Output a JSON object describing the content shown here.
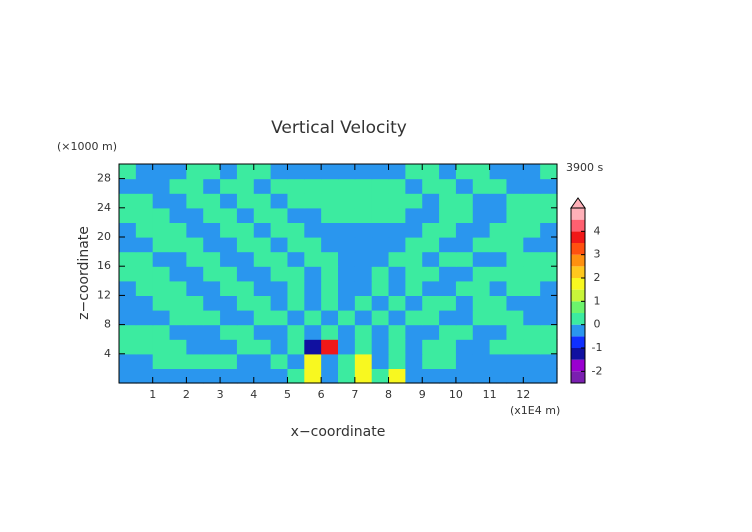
{
  "chart_data": {
    "type": "contour",
    "title": "Vertical Velocity",
    "xlabel": "x−coordinate",
    "ylabel": "z−coordinate",
    "x_unit": "(x1E4 m)",
    "y_unit": "(×1000 m)",
    "time_label": "3900 s",
    "xlim": [
      0,
      13
    ],
    "ylim": [
      0,
      30
    ],
    "xticks": [
      1,
      2,
      3,
      4,
      5,
      6,
      7,
      8,
      9,
      10,
      11,
      12
    ],
    "yticks": [
      4,
      8,
      12,
      16,
      20,
      24,
      28
    ],
    "levels": [
      -2.5,
      -2,
      -1.5,
      -1,
      -0.5,
      0,
      0.5,
      1,
      1.5,
      2,
      2.5,
      3,
      3.5,
      4,
      4.5,
      5
    ],
    "colors": [
      "#7a1fb0",
      "#9a00d0",
      "#1010a0",
      "#1030ff",
      "#2a96ee",
      "#3ceba0",
      "#6cf46c",
      "#c8f53a",
      "#f8f820",
      "#ffc81e",
      "#ff9010",
      "#ff5010",
      "#f01818",
      "#ff6070",
      "#ffb0b8"
    ],
    "colorbar_ticks": [
      -2,
      -1,
      0,
      1,
      2,
      3,
      4
    ],
    "z": [
      [
        -0.2,
        -0.2,
        -0.2,
        -0.2,
        -0.2,
        -0.2,
        -0.2,
        -0.2,
        -0.2,
        -0.2,
        0.2,
        1.6,
        -0.2,
        0.2,
        1.6,
        0.2,
        1.6,
        -0.2,
        -0.2,
        -0.2,
        -0.2,
        -0.2,
        -0.2,
        -0.2,
        -0.2,
        -0.2
      ],
      [
        -0.2,
        -0.2,
        0.2,
        0.2,
        0.2,
        0.2,
        0.2,
        -0.2,
        -0.2,
        0.2,
        -0.2,
        1.6,
        -0.2,
        0.2,
        1.6,
        -0.2,
        0.2,
        -0.2,
        0.2,
        0.2,
        -0.2,
        -0.2,
        -0.2,
        -0.2,
        -0.2,
        -0.2
      ],
      [
        0.2,
        0.2,
        0.2,
        0.2,
        -0.2,
        -0.2,
        -0.2,
        0.2,
        0.2,
        -0.2,
        0.2,
        -1.2,
        3.6,
        -0.2,
        0.2,
        -0.2,
        0.2,
        -0.2,
        0.2,
        0.2,
        -0.2,
        -0.2,
        0.2,
        0.2,
        0.2,
        0.2
      ],
      [
        0.2,
        0.2,
        0.2,
        -0.2,
        -0.2,
        -0.2,
        0.2,
        0.2,
        -0.2,
        -0.2,
        0.2,
        -0.2,
        0.2,
        -0.2,
        0.2,
        -0.2,
        0.2,
        -0.2,
        -0.2,
        0.2,
        0.2,
        -0.2,
        -0.2,
        0.2,
        0.2,
        0.2
      ],
      [
        -0.2,
        -0.2,
        -0.2,
        0.2,
        0.2,
        0.2,
        -0.2,
        -0.2,
        0.2,
        0.2,
        -0.2,
        0.2,
        -0.2,
        0.2,
        -0.2,
        0.2,
        -0.2,
        0.2,
        0.2,
        -0.2,
        -0.2,
        0.2,
        0.2,
        0.2,
        -0.2,
        -0.2
      ],
      [
        -0.2,
        -0.2,
        0.2,
        0.2,
        0.2,
        -0.2,
        -0.2,
        0.2,
        0.2,
        -0.2,
        0.2,
        -0.2,
        0.2,
        -0.2,
        0.2,
        -0.2,
        0.2,
        -0.2,
        0.2,
        0.2,
        -0.2,
        0.2,
        0.2,
        -0.2,
        -0.2,
        -0.2
      ],
      [
        -0.2,
        0.2,
        0.2,
        0.2,
        -0.2,
        -0.2,
        0.2,
        0.2,
        -0.2,
        -0.2,
        0.2,
        -0.2,
        0.2,
        -0.2,
        -0.2,
        0.2,
        -0.2,
        0.2,
        -0.2,
        -0.2,
        0.2,
        0.2,
        -0.2,
        0.2,
        0.2,
        -0.2
      ],
      [
        0.2,
        0.2,
        0.2,
        -0.2,
        -0.2,
        0.2,
        0.2,
        -0.2,
        -0.2,
        0.2,
        0.2,
        -0.2,
        0.2,
        -0.2,
        -0.2,
        0.2,
        -0.2,
        0.2,
        0.2,
        -0.2,
        -0.2,
        0.2,
        0.2,
        0.2,
        0.2,
        0.2
      ],
      [
        0.2,
        0.2,
        -0.2,
        -0.2,
        0.2,
        0.2,
        -0.2,
        -0.2,
        0.2,
        0.2,
        -0.2,
        0.2,
        0.2,
        -0.2,
        -0.2,
        -0.2,
        0.2,
        0.2,
        -0.2,
        0.2,
        0.2,
        -0.2,
        -0.2,
        0.2,
        0.2,
        0.2
      ],
      [
        -0.2,
        -0.2,
        0.2,
        0.2,
        0.2,
        -0.2,
        -0.2,
        0.2,
        0.2,
        -0.2,
        0.2,
        0.2,
        -0.2,
        -0.2,
        -0.2,
        -0.2,
        -0.2,
        0.2,
        0.2,
        -0.2,
        -0.2,
        0.2,
        0.2,
        0.2,
        -0.2,
        -0.2
      ],
      [
        -0.2,
        0.2,
        0.2,
        0.2,
        -0.2,
        -0.2,
        0.2,
        0.2,
        -0.2,
        0.2,
        0.2,
        -0.2,
        -0.2,
        -0.2,
        -0.2,
        -0.2,
        -0.2,
        -0.2,
        0.2,
        0.2,
        -0.2,
        -0.2,
        0.2,
        0.2,
        0.2,
        -0.2
      ],
      [
        0.2,
        0.2,
        0.2,
        -0.2,
        -0.2,
        0.2,
        0.2,
        -0.2,
        0.2,
        0.2,
        -0.2,
        -0.2,
        0.2,
        0.2,
        0.2,
        0.2,
        0.2,
        -0.2,
        -0.2,
        0.2,
        0.2,
        -0.2,
        -0.2,
        0.2,
        0.2,
        0.2
      ],
      [
        0.2,
        0.2,
        -0.2,
        -0.2,
        0.2,
        0.2,
        -0.2,
        0.2,
        0.2,
        -0.2,
        0.2,
        0.2,
        0.2,
        0.2,
        0.2,
        0.2,
        0.2,
        0.2,
        -0.2,
        0.2,
        0.2,
        -0.2,
        -0.2,
        0.2,
        0.2,
        0.2
      ],
      [
        -0.2,
        -0.2,
        -0.2,
        0.2,
        0.2,
        -0.2,
        0.2,
        0.2,
        -0.2,
        0.2,
        0.2,
        0.2,
        0.2,
        0.2,
        0.2,
        0.2,
        0.2,
        -0.2,
        0.2,
        0.2,
        -0.2,
        0.2,
        0.2,
        -0.2,
        -0.2,
        -0.2
      ],
      [
        0.2,
        -0.2,
        -0.2,
        -0.2,
        0.2,
        0.2,
        -0.2,
        0.2,
        0.2,
        -0.2,
        -0.2,
        -0.2,
        -0.2,
        -0.2,
        -0.2,
        -0.2,
        -0.2,
        0.2,
        0.2,
        -0.2,
        0.2,
        0.2,
        -0.2,
        -0.2,
        -0.2,
        0.2
      ]
    ]
  }
}
